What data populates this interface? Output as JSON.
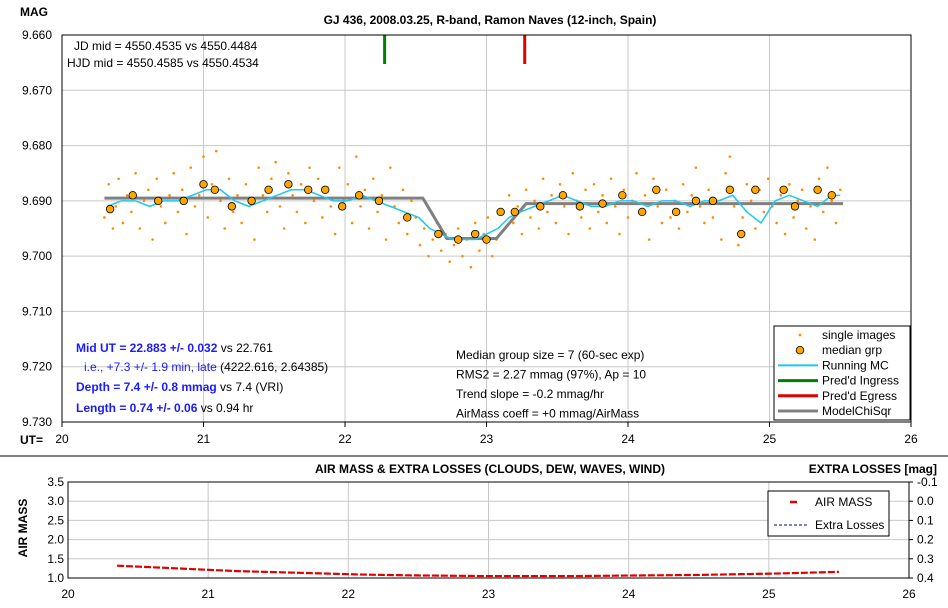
{
  "chart_data": [
    {
      "type": "scatter",
      "title": "GJ 436, 2008.03.25, R-band, Ramon Naves (12-inch, Spain)",
      "ylabel": "MAG",
      "xlabel_prefix": "UT=",
      "xlim": [
        20,
        26
      ],
      "ylim": [
        9.66,
        9.73
      ],
      "y_inverted": true,
      "x_ticks": [
        "20",
        "21",
        "22",
        "23",
        "24",
        "25",
        "26"
      ],
      "y_ticks": [
        "9.660",
        "9.670",
        "9.680",
        "9.690",
        "9.700",
        "9.710",
        "9.720",
        "9.730"
      ],
      "jd_mid": "JD mid = 4550.4535 vs 4550.4484",
      "hjd_mid": "HJD mid = 4550.4585 vs 4550.4534",
      "ingress_marker_ut": 22.28,
      "egress_marker_ut": 23.27,
      "stats": {
        "mid_ut": "Mid UT = 22.883 +/- 0.032",
        "mid_ut_vs": " vs 22.761",
        "late_note": "i.e., +7.3 +/- 1.9 min, late",
        "late_note_ref": " (4222.616, 2.64385)",
        "depth": "Depth = 7.4 +/- 0.8 mmag",
        "depth_vs": " vs 7.4 (VRI)",
        "length": "Length = 0.74 +/- 0.06",
        "length_vs": " vs 0.94 hr"
      },
      "info_lines": [
        "Median group size = 7 (60-sec exp)",
        "RMS2 = 2.27 mmag (97%), Ap = 10",
        "Trend slope = -0.2 mmag/hr",
        "AirMass coeff = +0 mmag/AirMass"
      ],
      "legend": [
        {
          "label": "single images",
          "color": "#ff8c00"
        },
        {
          "label": "median grp",
          "color": "#ffa500"
        },
        {
          "label": "Running MC",
          "color": "#1ec8f0"
        },
        {
          "label": "Pred'd Ingress",
          "color": "#008000"
        },
        {
          "label": "Pred'd Egress",
          "color": "#e00000"
        },
        {
          "label": "ModelChiSqr",
          "color": "#808080"
        }
      ],
      "series": [
        {
          "name": "median grp",
          "x": [
            20.34,
            20.5,
            20.68,
            20.86,
            21.0,
            21.08,
            21.2,
            21.34,
            21.46,
            21.6,
            21.74,
            21.86,
            21.98,
            22.1,
            22.24,
            22.44,
            22.66,
            22.8,
            22.92,
            23.0,
            23.1,
            23.2,
            23.38,
            23.54,
            23.66,
            23.82,
            23.96,
            24.1,
            24.2,
            24.34,
            24.48,
            24.6,
            24.72,
            24.8,
            24.9,
            25.1,
            25.18,
            25.34,
            25.44
          ],
          "y": [
            9.6915,
            9.689,
            9.69,
            9.69,
            9.687,
            9.688,
            9.691,
            9.69,
            9.688,
            9.687,
            9.688,
            9.688,
            9.691,
            9.689,
            9.69,
            9.693,
            9.696,
            9.697,
            9.696,
            9.697,
            9.692,
            9.692,
            9.691,
            9.689,
            9.691,
            9.6905,
            9.689,
            9.692,
            9.688,
            9.692,
            9.69,
            9.69,
            9.688,
            9.696,
            9.688,
            9.688,
            9.691,
            9.688,
            9.689
          ]
        },
        {
          "name": "Running MC",
          "x": [
            20.32,
            20.42,
            20.52,
            20.62,
            20.72,
            20.82,
            20.92,
            21.02,
            21.12,
            21.22,
            21.32,
            21.42,
            21.52,
            21.62,
            21.72,
            21.82,
            21.92,
            22.02,
            22.12,
            22.22,
            22.32,
            22.42,
            22.52,
            22.6,
            22.68,
            22.76,
            22.84,
            22.92,
            23.0,
            23.08,
            23.16,
            23.24,
            23.34,
            23.44,
            23.54,
            23.64,
            23.74,
            23.84,
            23.94,
            24.04,
            24.14,
            24.24,
            24.34,
            24.44,
            24.54,
            24.64,
            24.74,
            24.84,
            24.94,
            25.04,
            25.14,
            25.24,
            25.34,
            25.44,
            25.5
          ],
          "y": [
            9.691,
            9.69,
            9.69,
            9.691,
            9.69,
            9.69,
            9.689,
            9.688,
            9.688,
            9.69,
            9.691,
            9.69,
            9.689,
            9.688,
            9.688,
            9.689,
            9.69,
            9.69,
            9.689,
            9.69,
            9.691,
            9.692,
            9.693,
            9.695,
            9.696,
            9.697,
            9.697,
            9.697,
            9.696,
            9.695,
            9.693,
            9.692,
            9.691,
            9.69,
            9.689,
            9.69,
            9.691,
            9.691,
            9.69,
            9.69,
            9.691,
            9.69,
            9.69,
            9.691,
            9.69,
            9.69,
            9.689,
            9.692,
            9.694,
            9.69,
            9.689,
            9.69,
            9.691,
            9.689,
            9.689
          ]
        },
        {
          "name": "ModelChiSqr",
          "x": [
            20.3,
            22.55,
            22.72,
            23.07,
            23.28,
            25.52
          ],
          "y": [
            9.6895,
            9.6895,
            9.6968,
            9.6968,
            9.6905,
            9.6905
          ]
        }
      ],
      "single_images": {
        "name": "single images",
        "x": [
          20.3,
          20.33,
          20.36,
          20.38,
          20.4,
          20.43,
          20.46,
          20.49,
          20.52,
          20.55,
          20.58,
          20.61,
          20.64,
          20.67,
          20.7,
          20.73,
          20.76,
          20.79,
          20.82,
          20.85,
          20.88,
          20.91,
          20.94,
          20.97,
          21.0,
          21.03,
          21.06,
          21.09,
          21.12,
          21.15,
          21.18,
          21.21,
          21.24,
          21.27,
          21.3,
          21.33,
          21.36,
          21.39,
          21.42,
          21.45,
          21.48,
          21.51,
          21.54,
          21.57,
          21.6,
          21.63,
          21.66,
          21.69,
          21.72,
          21.75,
          21.78,
          21.81,
          21.84,
          21.87,
          21.9,
          21.93,
          21.96,
          21.99,
          22.02,
          22.05,
          22.08,
          22.11,
          22.14,
          22.17,
          22.2,
          22.23,
          22.26,
          22.29,
          22.32,
          22.35,
          22.38,
          22.41,
          22.44,
          22.47,
          22.5,
          22.53,
          22.56,
          22.59,
          22.62,
          22.65,
          22.68,
          22.71,
          22.74,
          22.77,
          22.8,
          22.83,
          22.86,
          22.89,
          22.92,
          22.95,
          22.98,
          23.01,
          23.04,
          23.07,
          23.1,
          23.13,
          23.16,
          23.19,
          23.22,
          23.25,
          23.28,
          23.31,
          23.34,
          23.37,
          23.4,
          23.43,
          23.46,
          23.49,
          23.52,
          23.55,
          23.58,
          23.61,
          23.64,
          23.67,
          23.7,
          23.73,
          23.76,
          23.79,
          23.82,
          23.85,
          23.88,
          23.91,
          23.94,
          23.97,
          24.0,
          24.03,
          24.06,
          24.09,
          24.12,
          24.15,
          24.18,
          24.21,
          24.24,
          24.27,
          24.3,
          24.33,
          24.36,
          24.39,
          24.42,
          24.45,
          24.48,
          24.51,
          24.54,
          24.57,
          24.6,
          24.63,
          24.66,
          24.69,
          24.72,
          24.75,
          24.78,
          24.81,
          24.84,
          24.87,
          24.9,
          24.93,
          24.96,
          24.99,
          25.02,
          25.05,
          25.08,
          25.11,
          25.14,
          25.17,
          25.2,
          25.23,
          25.26,
          25.29,
          25.32,
          25.35,
          25.38,
          25.41,
          25.44,
          25.47,
          25.5
        ],
        "y": [
          9.693,
          9.687,
          9.695,
          9.691,
          9.686,
          9.694,
          9.689,
          9.692,
          9.685,
          9.695,
          9.69,
          9.688,
          9.697,
          9.686,
          9.691,
          9.694,
          9.689,
          9.685,
          9.692,
          9.688,
          9.696,
          9.684,
          9.691,
          9.689,
          9.682,
          9.693,
          9.687,
          9.681,
          9.69,
          9.695,
          9.686,
          9.692,
          9.689,
          9.694,
          9.687,
          9.69,
          9.697,
          9.684,
          9.689,
          9.692,
          9.686,
          9.683,
          9.691,
          9.695,
          9.685,
          9.689,
          9.692,
          9.687,
          9.694,
          9.684,
          9.69,
          9.686,
          9.693,
          9.688,
          9.691,
          9.696,
          9.684,
          9.69,
          9.687,
          9.694,
          9.682,
          9.691,
          9.688,
          9.695,
          9.686,
          9.692,
          9.689,
          9.697,
          9.684,
          9.691,
          9.694,
          9.688,
          9.696,
          9.69,
          9.693,
          9.698,
          9.695,
          9.7,
          9.697,
          9.694,
          9.699,
          9.696,
          9.701,
          9.698,
          9.695,
          9.7,
          9.697,
          9.702,
          9.694,
          9.699,
          9.696,
          9.693,
          9.7,
          9.697,
          9.692,
          9.695,
          9.689,
          9.694,
          9.691,
          9.696,
          9.688,
          9.693,
          9.69,
          9.695,
          9.686,
          9.692,
          9.689,
          9.694,
          9.687,
          9.691,
          9.696,
          9.685,
          9.69,
          9.693,
          9.688,
          9.695,
          9.687,
          9.692,
          9.689,
          9.694,
          9.686,
          9.691,
          9.696,
          9.688,
          9.693,
          9.69,
          9.685,
          9.692,
          9.689,
          9.697,
          9.686,
          9.691,
          9.694,
          9.688,
          9.693,
          9.69,
          9.695,
          9.687,
          9.692,
          9.689,
          9.684,
          9.691,
          9.694,
          9.688,
          9.693,
          9.69,
          9.697,
          9.685,
          9.682,
          9.691,
          9.698,
          9.693,
          9.687,
          9.69,
          9.695,
          9.688,
          9.692,
          9.686,
          9.691,
          9.694,
          9.689,
          9.696,
          9.687,
          9.693,
          9.69,
          9.688,
          9.695,
          9.691,
          9.697,
          9.686,
          9.692,
          9.684,
          9.69,
          9.694,
          9.688
        ]
      }
    },
    {
      "type": "line",
      "title": "AIR MASS & EXTRA LOSSES (CLOUDS, DEW, WAVES, WIND)",
      "right_title": "EXTRA LOSSES [mag]",
      "ylabel": "AIR MASS",
      "xlim": [
        20,
        26
      ],
      "ylim": [
        1.0,
        3.5
      ],
      "y2lim": [
        -0.1,
        0.4
      ],
      "x_ticks": [
        "20",
        "21",
        "22",
        "23",
        "24",
        "25",
        "26"
      ],
      "y_ticks": [
        "3.5",
        "3.0",
        "2.5",
        "2.0",
        "1.5",
        "1.0"
      ],
      "y2_ticks": [
        "-0.1",
        "0.0",
        "0.1",
        "0.2",
        "0.3",
        "0.4"
      ],
      "series": [
        {
          "name": "AIR MASS",
          "color": "#e00000",
          "x": [
            20.35,
            20.6,
            20.9,
            21.2,
            21.5,
            21.8,
            22.1,
            22.4,
            22.7,
            23.0,
            23.3,
            23.6,
            23.9,
            24.2,
            24.5,
            24.8,
            25.1,
            25.4,
            25.5
          ],
          "y": [
            1.32,
            1.28,
            1.23,
            1.18,
            1.15,
            1.12,
            1.09,
            1.07,
            1.06,
            1.05,
            1.05,
            1.05,
            1.06,
            1.07,
            1.08,
            1.1,
            1.12,
            1.15,
            1.16
          ]
        },
        {
          "name": "Extra Losses",
          "color": "#00008b",
          "x": [],
          "y": []
        }
      ]
    }
  ]
}
